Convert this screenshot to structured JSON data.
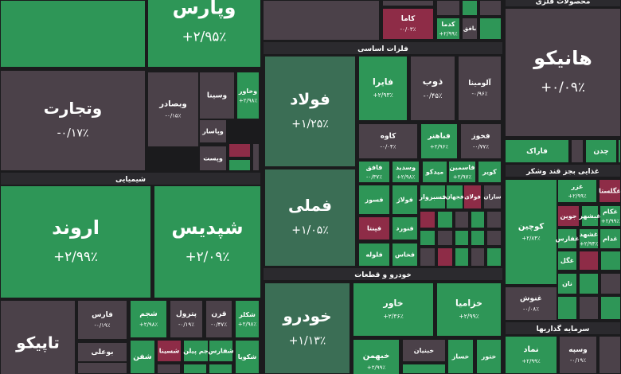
{
  "sectors": [
    {
      "label": "محصولات فلزی"
    },
    {
      "label": "شیمیایی"
    },
    {
      "label": "فلزات اساسی"
    },
    {
      "label": "خودرو و قطعات"
    },
    {
      "label": "غذایی بجز قند وشکر"
    },
    {
      "label": "سرمایه گذاریها"
    }
  ],
  "tiles": [
    {
      "name": "وپارس",
      "change": "+۲/۹۵٪"
    },
    {
      "name": "وتجارت",
      "change": "-۰/۱۷٪"
    },
    {
      "name": "وبصادر",
      "change": "-۰/۱۵٪"
    },
    {
      "name": "وسینا"
    },
    {
      "name": "وخاور",
      "change": "+۲/۹۸٪"
    },
    {
      "name": "وپاسار"
    },
    {
      "name": "وپست"
    },
    {
      "name": "اروند",
      "change": "+۲/۹۹٪"
    },
    {
      "name": "شپدیس",
      "change": "+۲/۰۹٪"
    },
    {
      "name": "تاپیکو"
    },
    {
      "name": "فارس",
      "change": "-۰/۱۹٪"
    },
    {
      "name": "بوعلی"
    },
    {
      "name": "شجم",
      "change": "+۲/۹۸٪"
    },
    {
      "name": "پترول",
      "change": "-۰/۱۹٪"
    },
    {
      "name": "قرن",
      "change": "-۰/۴۷٪"
    },
    {
      "name": "شکلر",
      "change": "+۲/۹۸٪"
    },
    {
      "name": "شفن"
    },
    {
      "name": "شسینا"
    },
    {
      "name": "جم پیلن"
    },
    {
      "name": "شفارس"
    },
    {
      "name": "شکویا"
    },
    {
      "name": "کاما",
      "change": "-۰/۰۳٪"
    },
    {
      "name": "کدما",
      "change": "+۲/۹۹٪"
    },
    {
      "name": "بافق"
    },
    {
      "name": "فولاد",
      "change": "+۱/۲۵٪"
    },
    {
      "name": "فملی",
      "change": "+۱/۰۵٪"
    },
    {
      "name": "فایرا",
      "change": "+۲/۹۳٪"
    },
    {
      "name": "ذوب",
      "change": "-۰/۴۵٪"
    },
    {
      "name": "آلومینا",
      "change": "-۰/۹۶٪"
    },
    {
      "name": "کاوه",
      "change": "-۰/۰۴٪"
    },
    {
      "name": "فباهنر",
      "change": "+۲/۹۶٪"
    },
    {
      "name": "فخوز",
      "change": "-۰/۷۷٪"
    },
    {
      "name": "فافق",
      "change": "-۰/۳۷٪"
    },
    {
      "name": "وسدید",
      "change": "+۲/۹۸٪"
    },
    {
      "name": "میدکو"
    },
    {
      "name": "فاسمین",
      "change": "+۲/۹۷٪"
    },
    {
      "name": "کویر"
    },
    {
      "name": "فسوز"
    },
    {
      "name": "فولاژ"
    },
    {
      "name": "فسبزوار"
    },
    {
      "name": "فجهان"
    },
    {
      "name": "فولای"
    },
    {
      "name": "ساران"
    },
    {
      "name": "فپنتا"
    },
    {
      "name": "فنورد"
    },
    {
      "name": "فلوله"
    },
    {
      "name": "فخاس"
    },
    {
      "name": "خودرو",
      "change": "+۱/۱۳٪"
    },
    {
      "name": "خاور",
      "change": "+۲/۳۶٪"
    },
    {
      "name": "خزامیا",
      "change": "+۲/۹۹٪"
    },
    {
      "name": "خبهمن",
      "change": "+۲/۹۹٪"
    },
    {
      "name": "خبنیان"
    },
    {
      "name": "خساز"
    },
    {
      "name": "ختور"
    },
    {
      "name": "هانیکو",
      "change": "+۰/۰۹٪"
    },
    {
      "name": "فاراک"
    },
    {
      "name": "چدن"
    },
    {
      "name": "کوچین",
      "change": "+۲/۸۴٪"
    },
    {
      "name": "غزر",
      "change": "+۲/۹۹٪"
    },
    {
      "name": "غگلستا"
    },
    {
      "name": "جوین"
    },
    {
      "name": "غبشهر"
    },
    {
      "name": "غکام",
      "change": "+۲/۹۹٪"
    },
    {
      "name": "غفارس"
    },
    {
      "name": "غشهد",
      "change": "+۲/۹۴٪"
    },
    {
      "name": "غدام"
    },
    {
      "name": "غگل"
    },
    {
      "name": "نان"
    },
    {
      "name": "غنوش",
      "change": "-۰/۰۸٪"
    },
    {
      "name": "نماد",
      "change": "+۲/۹۹٪"
    },
    {
      "name": "وسپه",
      "change": "-۰/۱۹٪"
    }
  ]
}
